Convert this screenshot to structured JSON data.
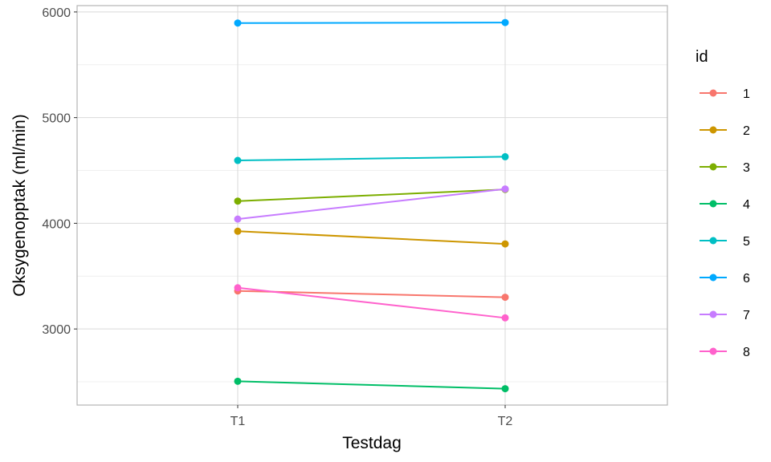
{
  "chart_data": {
    "type": "line",
    "title": "",
    "xlabel": "Testdag",
    "ylabel": "Oksygenopptak (ml/min)",
    "categories": [
      "T1",
      "T2"
    ],
    "y_ticks": [
      3000,
      4000,
      5000,
      6000
    ],
    "ylim": [
      2280,
      6060
    ],
    "grid": true,
    "legend": {
      "title": "id",
      "position": "right"
    },
    "series": [
      {
        "name": "1",
        "color": "#F8766D",
        "values": [
          3360,
          3300
        ]
      },
      {
        "name": "2",
        "color": "#CD9600",
        "values": [
          3925,
          3805
        ]
      },
      {
        "name": "3",
        "color": "#7CAE00",
        "values": [
          4210,
          4320
        ]
      },
      {
        "name": "4",
        "color": "#00BE67",
        "values": [
          2505,
          2435
        ]
      },
      {
        "name": "5",
        "color": "#00BFC4",
        "values": [
          4595,
          4630
        ]
      },
      {
        "name": "6",
        "color": "#00A9FF",
        "values": [
          5895,
          5900
        ]
      },
      {
        "name": "7",
        "color": "#C77CFF",
        "values": [
          4040,
          4325
        ]
      },
      {
        "name": "8",
        "color": "#FF61CC",
        "values": [
          3390,
          3105
        ]
      }
    ]
  }
}
